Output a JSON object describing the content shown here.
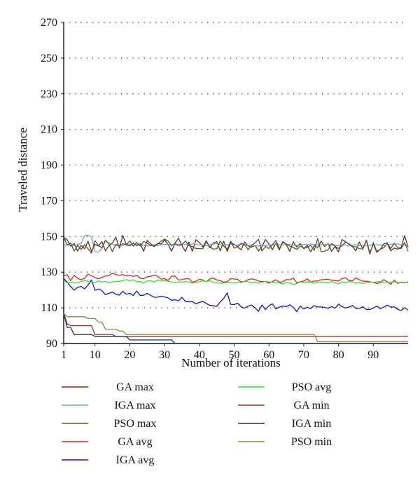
{
  "chart_data": {
    "type": "line",
    "xlabel": "Number of iterations",
    "ylabel": "Traveled distance",
    "xlim": [
      1,
      100
    ],
    "ylim": [
      90,
      270
    ],
    "x_ticks": [
      1,
      10,
      20,
      30,
      40,
      50,
      60,
      70,
      80,
      90
    ],
    "y_ticks": [
      90,
      110,
      130,
      150,
      170,
      190,
      210,
      230,
      250,
      270
    ],
    "grid": "dotted horizontal",
    "legend_placement": "bottom, two columns",
    "series": [
      {
        "name": "GA max",
        "color": "#6b2a1f",
        "values": [
          149.5,
          148.2,
          144.6,
          146.0,
          141.9,
          145.0,
          143.1,
          147.3,
          141.6,
          145.5,
          144.7,
          147.1,
          142.0,
          144.8,
          146.4,
          149.5,
          143.5,
          150.6,
          145.2,
          144.8,
          146.3,
          144.8,
          145.9,
          141.7,
          147.8,
          146.0,
          144.3,
          146.1,
          145.8,
          148.0,
          145.6,
          141.7,
          146.3,
          149.0,
          144.9,
          141.6,
          146.9,
          141.7,
          148.2,
          146.6,
          144.1,
          147.6,
          143.6,
          146.3,
          147.1,
          141.9,
          147.3,
          141.7,
          146.4,
          145.6,
          144.2,
          142.5,
          146.9,
          144.7,
          144.0,
          145.0,
          141.8,
          144.4,
          148.3,
          145.8,
          142.6,
          146.3,
          142.5,
          147.2,
          145.4,
          141.6,
          147.0,
          144.1,
          146.0,
          143.1,
          145.0,
          141.4,
          144.9,
          143.8,
          147.4,
          144.4,
          145.9,
          141.7,
          144.5,
          141.3,
          148.3,
          147.0,
          145.6,
          144.3,
          142.0,
          146.9,
          143.0,
          148.0,
          140.8,
          145.7,
          141.1,
          142.8,
          143.8,
          146.0,
          142.0,
          143.5,
          142.9,
          143.8,
          150.5,
          144.0
        ]
      },
      {
        "name": "IGA max",
        "color": "#6c9fc8",
        "values": [
          145.4,
          145.1,
          145.3,
          144.8,
          145.6,
          146.1,
          150.4,
          150.7,
          149.5,
          141.6,
          141.2,
          143.3,
          147.6,
          146.2,
          145.5,
          145.0,
          144.7,
          144.9,
          145.6,
          145.7,
          145.2,
          145.5,
          144.9,
          145.0,
          144.7,
          144.9,
          145.3,
          144.7,
          145.4,
          145.6,
          145.5,
          145.3,
          145.3,
          145.6,
          145.5,
          145.6,
          145.0,
          145.9,
          145.6,
          145.3,
          145.1,
          144.8,
          145.3,
          145.8,
          146.0,
          145.4,
          145.2,
          145.3,
          145.7,
          145.2,
          145.0,
          145.9,
          145.1,
          144.9,
          145.3,
          144.9,
          144.6,
          145.2,
          144.8,
          145.4,
          145.1,
          145.8,
          145.3,
          145.2,
          145.4,
          145.6,
          145.1,
          145.0,
          145.2,
          145.5,
          145.4,
          145.8,
          145.6,
          145.3,
          145.4,
          145.6,
          145.5,
          145.3,
          144.9,
          145.0,
          145.1,
          145.4,
          144.6,
          145.2,
          145.3,
          145.1,
          145.0,
          145.1,
          145.2,
          145.0,
          145.4,
          145.3,
          145.1,
          145.4,
          145.6,
          145.6,
          145.8,
          145.3,
          145.2,
          145.3
        ]
      },
      {
        "name": "PSO max",
        "color": "#4f5a2a",
        "values": [
          149.6,
          145.4,
          146.3,
          141.8,
          145.1,
          142.7,
          145.4,
          143.1,
          140.6,
          147.6,
          144.8,
          143.8,
          147.9,
          145.8,
          141.5,
          145.6,
          144.9,
          145.9,
          145.5,
          147.5,
          144.6,
          146.6,
          144.6,
          147.2,
          146.3,
          144.9,
          145.1,
          145.6,
          147.4,
          148.6,
          147.4,
          144.9,
          146.1,
          144.9,
          145.5,
          147.5,
          144.9,
          144.4,
          143.2,
          143.2,
          143.1,
          147.1,
          144.2,
          142.9,
          143.2,
          147.5,
          144.6,
          142.7,
          147.4,
          143.5,
          144.2,
          146.1,
          145.5,
          142.6,
          144.9,
          146.4,
          148.5,
          141.8,
          144.4,
          143.3,
          145.3,
          147.8,
          143.2,
          146.6,
          145.8,
          144.6,
          143.8,
          142.8,
          144.5,
          143.6,
          143.8,
          145.0,
          142.2,
          148.8,
          141.5,
          141.8,
          142.5,
          146.1,
          144.6,
          143.2,
          144.9,
          146.7,
          145.9,
          144.5,
          144.2,
          143.2,
          143.0,
          147.7,
          140.1,
          146.6,
          141.7,
          142.8,
          145.8,
          146.5,
          143.2,
          146.2,
          143.8,
          143.2,
          146.7,
          141.7
        ]
      },
      {
        "name": "GA avg",
        "color": "#e0201a",
        "values": [
          127.9,
          128.6,
          125.2,
          128.3,
          126.5,
          125.7,
          126.6,
          128.9,
          128.0,
          126.9,
          126.3,
          127.1,
          127.8,
          128.1,
          129.4,
          128.6,
          128.2,
          128.6,
          127.9,
          128.3,
          127.5,
          128.3,
          126.5,
          126.3,
          127.4,
          127.6,
          128.4,
          127.7,
          126.1,
          126.3,
          125.4,
          127.7,
          127.8,
          125.6,
          125.8,
          126.3,
          126.3,
          124.3,
          124.9,
          126.0,
          125.6,
          124.6,
          126.2,
          126.7,
          125.6,
          125.2,
          124.4,
          124.7,
          126.3,
          126.2,
          125.9,
          124.5,
          124.8,
          125.8,
          126.2,
          125.8,
          125.0,
          124.7,
          124.7,
          123.9,
          124.7,
          125.7,
          124.4,
          124.6,
          125.8,
          125.7,
          126.6,
          124.0,
          124.7,
          125.0,
          126.2,
          124.4,
          125.0,
          125.0,
          125.7,
          125.9,
          125.9,
          125.5,
          125.3,
          125.0,
          126.3,
          126.9,
          125.3,
          125.1,
          126.8,
          125.7,
          124.9,
          124.9,
          124.6,
          124.3,
          123.6,
          124.1,
          125.8,
          124.7,
          123.2,
          125.5,
          123.7,
          124.4,
          124.0,
          124.6
        ]
      },
      {
        "name": "IGA avg",
        "color": "#1414c8",
        "values": [
          126.4,
          124.4,
          121.9,
          119.8,
          121.5,
          122.0,
          120.6,
          122.8,
          125.6,
          119.8,
          120.5,
          119.6,
          117.4,
          118.1,
          118.9,
          117.6,
          117.1,
          119.3,
          117.6,
          118.2,
          116.9,
          119.4,
          116.9,
          117.1,
          118.1,
          117.0,
          115.9,
          116.0,
          116.5,
          116.1,
          115.6,
          114.2,
          114.5,
          113.9,
          115.9,
          113.5,
          113.4,
          113.4,
          112.3,
          113.0,
          113.6,
          112.5,
          111.4,
          111.2,
          110.8,
          113.3,
          115.3,
          118.4,
          111.9,
          111.8,
          112.6,
          110.6,
          109.8,
          110.9,
          111.5,
          110.0,
          108.0,
          111.6,
          109.0,
          111.2,
          112.2,
          109.4,
          110.4,
          111.0,
          110.7,
          111.7,
          110.3,
          107.9,
          111.0,
          109.3,
          110.3,
          109.6,
          111.3,
          110.5,
          110.5,
          110.3,
          109.7,
          110.7,
          109.8,
          112.1,
          110.7,
          109.9,
          110.4,
          111.3,
          109.6,
          109.7,
          110.6,
          109.1,
          109.1,
          109.9,
          111.0,
          109.5,
          110.4,
          111.5,
          110.5,
          110.5,
          109.2,
          108.5,
          110.1,
          108.6
        ]
      },
      {
        "name": "PSO avg",
        "color": "#33dd33",
        "values": [
          125.6,
          123.9,
          124.3,
          124.0,
          123.9,
          124.8,
          125.2,
          124.9,
          124.1,
          124.2,
          125.1,
          124.4,
          124.8,
          124.1,
          124.5,
          124.8,
          124.9,
          125.2,
          125.8,
          125.0,
          125.7,
          124.6,
          124.7,
          123.9,
          125.0,
          125.2,
          124.4,
          125.6,
          125.0,
          125.2,
          124.9,
          124.5,
          124.2,
          124.5,
          124.5,
          124.7,
          124.5,
          123.9,
          124.3,
          124.6,
          125.2,
          124.7,
          125.2,
          124.2,
          124.3,
          123.8,
          123.9,
          124.0,
          124.2,
          123.8,
          124.2,
          124.1,
          124.8,
          124.7,
          123.9,
          124.3,
          123.8,
          124.4,
          124.8,
          124.6,
          124.3,
          124.0,
          124.1,
          123.3,
          124.3,
          124.1,
          123.1,
          123.6,
          124.5,
          124.2,
          124.6,
          124.4,
          123.8,
          124.1,
          124.4,
          124.4,
          123.9,
          124.8,
          123.9,
          123.5,
          124.5,
          124.1,
          124.6,
          124.7,
          123.8,
          124.3,
          123.6,
          124.2,
          124.3,
          124.4,
          124.6,
          124.7,
          124.0,
          124.2,
          124.5,
          124.5,
          124.2,
          124.1,
          124.3,
          124.2
        ]
      },
      {
        "name": "GA min",
        "color": "#a3302a",
        "values": [
          107,
          101,
          100,
          100,
          100,
          100,
          100,
          100,
          100,
          95,
          95,
          95,
          95,
          95,
          95,
          94,
          94,
          94,
          94,
          94,
          94,
          94,
          94,
          94,
          94,
          94,
          94,
          94,
          94,
          94,
          94,
          94,
          94,
          94,
          94,
          94,
          94,
          94,
          94,
          94,
          94,
          94,
          94,
          94,
          94,
          94,
          94,
          94,
          94,
          94,
          94,
          94,
          94,
          94,
          94,
          94,
          94,
          94,
          94,
          94,
          94,
          94,
          94,
          94,
          94,
          94,
          94,
          94,
          94,
          94,
          94,
          94,
          94,
          94,
          94,
          94,
          94,
          94,
          94,
          94,
          94,
          94,
          94,
          94,
          94,
          94,
          94,
          94,
          94,
          94,
          94,
          94,
          94,
          94,
          94,
          94,
          94,
          94,
          94,
          94
        ]
      },
      {
        "name": "IGA min",
        "color": "#1c2f5e",
        "values": [
          107,
          99,
          99,
          95,
          95,
          95,
          95,
          95,
          95,
          94,
          94,
          94,
          94,
          94,
          94,
          94,
          94,
          94,
          94,
          92,
          92,
          92,
          92,
          92,
          92,
          92,
          92,
          92,
          92,
          92,
          92,
          92,
          90,
          90,
          90,
          90,
          90,
          90,
          90,
          90,
          90,
          90,
          90,
          90,
          90,
          90,
          90,
          90,
          90,
          90,
          90,
          90,
          90,
          90,
          90,
          90,
          90,
          90,
          90,
          90,
          90,
          90,
          90,
          90,
          90,
          90,
          90,
          90,
          90,
          90,
          90,
          90,
          90,
          90,
          90,
          90,
          90,
          90,
          90,
          90,
          90,
          90,
          90,
          90,
          90,
          90,
          90,
          90,
          90,
          90,
          90,
          90,
          90,
          90,
          90,
          90,
          90,
          90,
          90,
          90
        ]
      },
      {
        "name": "PSO min",
        "color": "#8a8a3e",
        "values": [
          107,
          105,
          105,
          105,
          105,
          105,
          105,
          104,
          104,
          104,
          102,
          102,
          98,
          98,
          98,
          98,
          97,
          97,
          95,
          95,
          95,
          95,
          95,
          95,
          95,
          95,
          95,
          95,
          95,
          95,
          95,
          95,
          95,
          95,
          95,
          95,
          95,
          95,
          95,
          95,
          95,
          95,
          95,
          95,
          95,
          95,
          95,
          95,
          95,
          95,
          95,
          95,
          95,
          95,
          95,
          95,
          95,
          95,
          95,
          95,
          95,
          95,
          95,
          95,
          95,
          95,
          95,
          95,
          95,
          95,
          95,
          95,
          95,
          91,
          91,
          91,
          91,
          91,
          91,
          91,
          91,
          91,
          91,
          91,
          91,
          91,
          91,
          91,
          91,
          91,
          91,
          91,
          91,
          91,
          91,
          91,
          91,
          91,
          91,
          91
        ]
      }
    ]
  }
}
